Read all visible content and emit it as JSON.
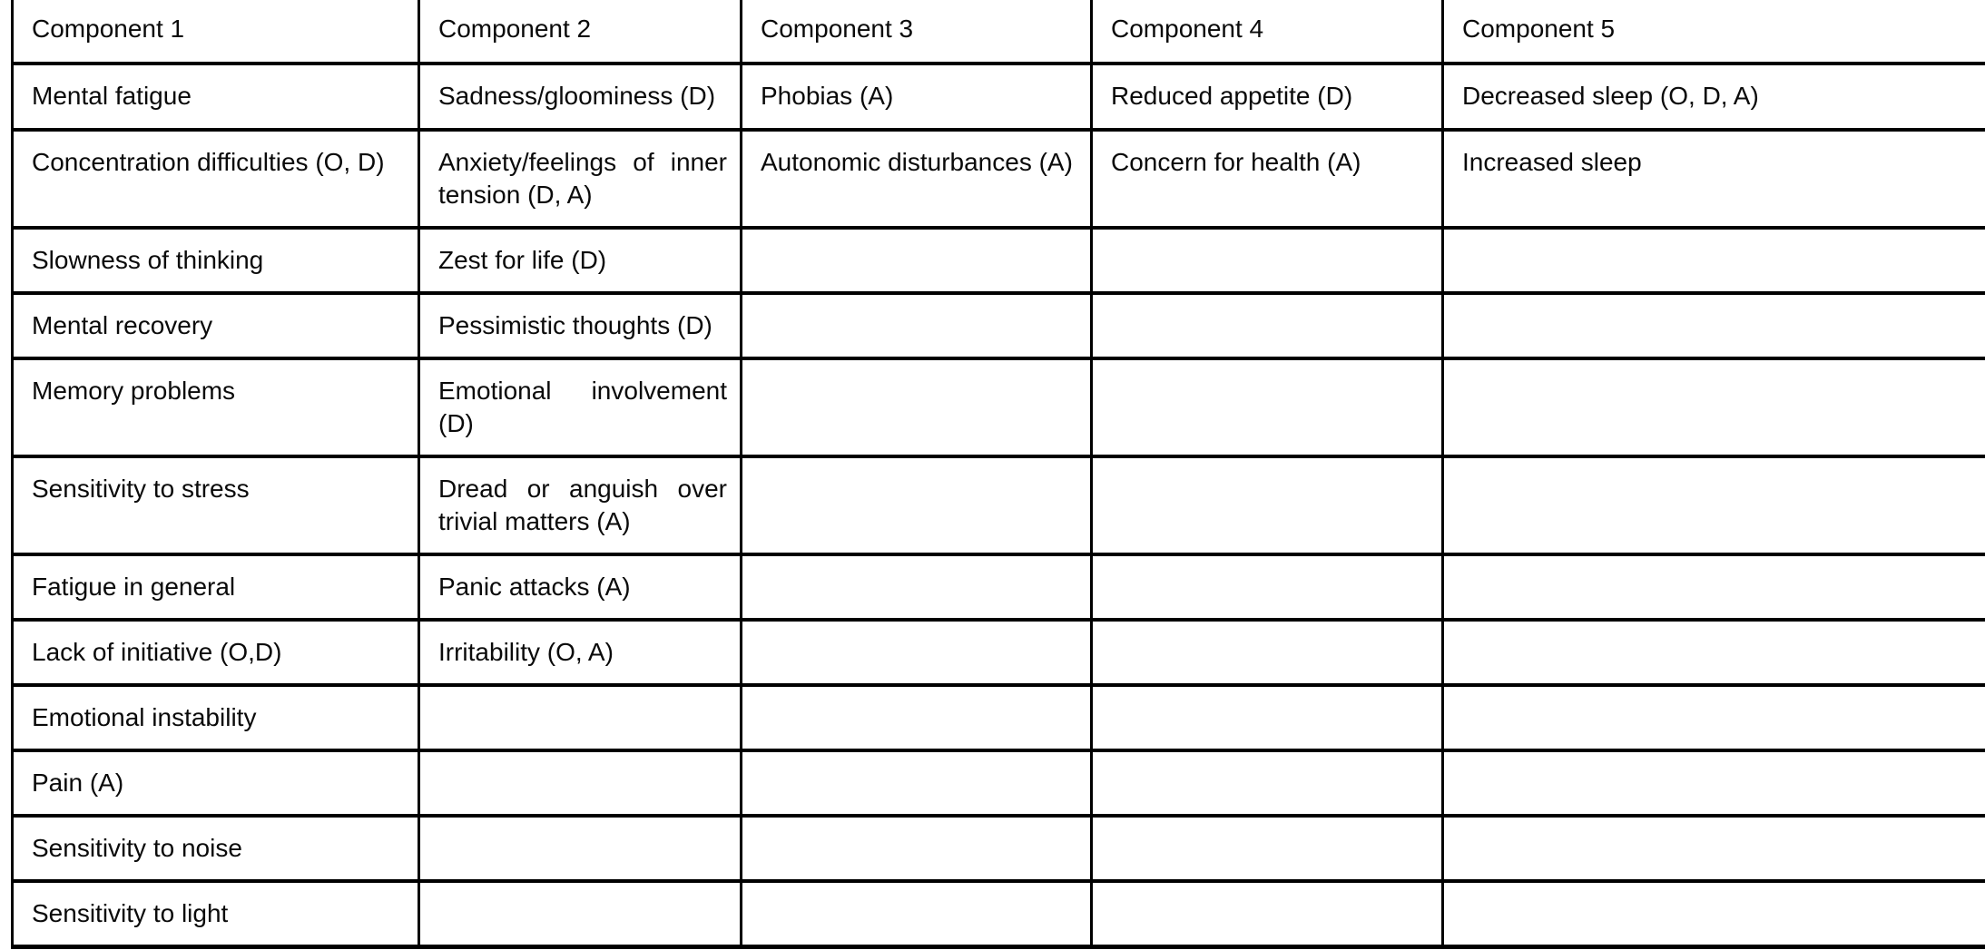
{
  "colors": {
    "background": "#ffffff",
    "border": "#000000",
    "text": "#0a0a0a"
  },
  "table": {
    "header": [
      "Component 1",
      "Component 2",
      "Component 3",
      "Component 4",
      "Component 5"
    ],
    "rows": [
      [
        "Mental fatigue",
        "Sadness/gloominess (D)",
        "Phobias (A)",
        "Reduced appetite (D)",
        "Decreased sleep (O, D, A)"
      ],
      [
        "Concentration difficulties (O, D)",
        "Anxiety/feelings of inner tension (D, A)",
        "Autonomic disturbances (A)",
        "Concern for health (A)",
        "Increased sleep"
      ],
      [
        "Slowness of thinking",
        "Zest for life (D)",
        "",
        "",
        ""
      ],
      [
        "Mental recovery",
        "Pessimistic thoughts (D)",
        "",
        "",
        ""
      ],
      [
        "Memory problems",
        "Emotional involvement (D)",
        "",
        "",
        ""
      ],
      [
        "Sensitivity to stress",
        "Dread or anguish over trivial matters (A)",
        "",
        "",
        ""
      ],
      [
        "Fatigue in general",
        "Panic attacks (A)",
        "",
        "",
        ""
      ],
      [
        "Lack of initiative (O,D)",
        "Irritability (O, A)",
        "",
        "",
        ""
      ],
      [
        "Emotional instability",
        "",
        "",
        "",
        ""
      ],
      [
        "Pain (A)",
        "",
        "",
        "",
        ""
      ],
      [
        "Sensitivity to noise",
        "",
        "",
        "",
        ""
      ],
      [
        "Sensitivity to light",
        "",
        "",
        "",
        ""
      ]
    ]
  }
}
